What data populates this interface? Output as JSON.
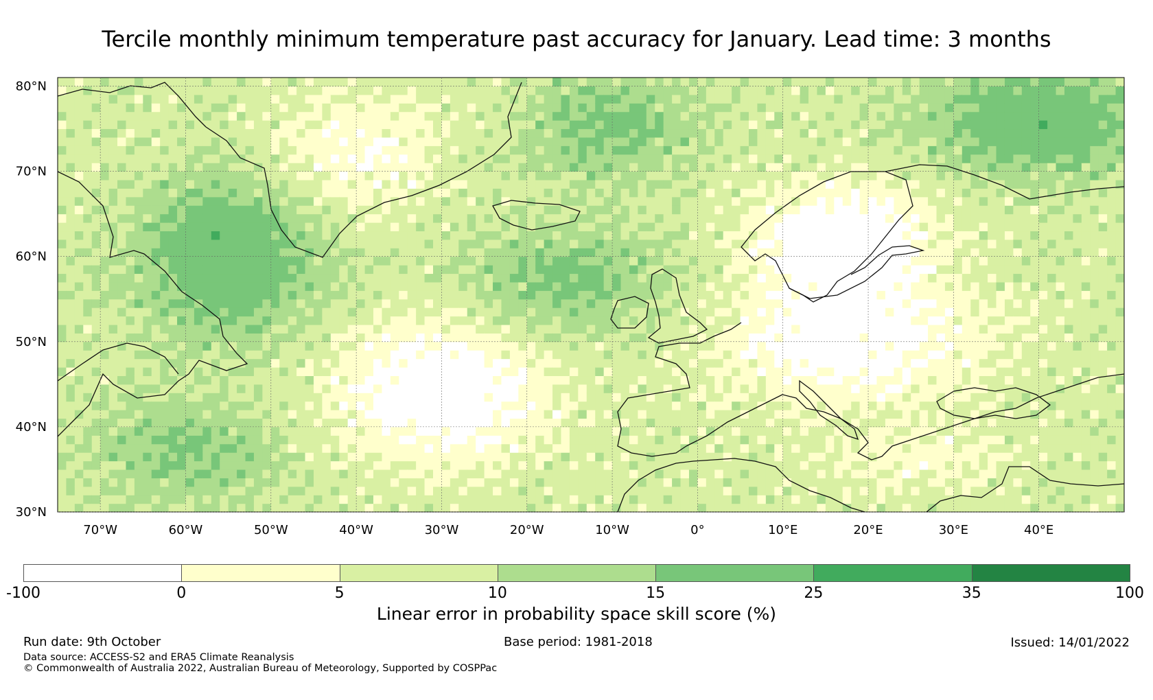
{
  "title": "Tercile monthly minimum temperature past accuracy for January. Lead time: 3 months",
  "map": {
    "lon_range": [
      -75,
      50
    ],
    "lat_range": [
      30,
      81
    ],
    "lat_ticks": [
      {
        "v": 80,
        "label": "80°N"
      },
      {
        "v": 70,
        "label": "70°N"
      },
      {
        "v": 60,
        "label": "60°N"
      },
      {
        "v": 50,
        "label": "50°N"
      },
      {
        "v": 40,
        "label": "40°N"
      },
      {
        "v": 30,
        "label": "30°N"
      }
    ],
    "lon_ticks": [
      {
        "v": -70,
        "label": "70°W"
      },
      {
        "v": -60,
        "label": "60°W"
      },
      {
        "v": -50,
        "label": "50°W"
      },
      {
        "v": -40,
        "label": "40°W"
      },
      {
        "v": -30,
        "label": "30°W"
      },
      {
        "v": -20,
        "label": "20°W"
      },
      {
        "v": -10,
        "label": "10°W"
      },
      {
        "v": 0,
        "label": "0°"
      },
      {
        "v": 10,
        "label": "10°E"
      },
      {
        "v": 20,
        "label": "20°E"
      },
      {
        "v": 30,
        "label": "30°E"
      },
      {
        "v": 40,
        "label": "40°E"
      }
    ]
  },
  "colorbar": {
    "bounds": [
      "-100",
      "0",
      "5",
      "10",
      "15",
      "25",
      "35",
      "100"
    ],
    "colors": [
      "#ffffff",
      "#ffffcc",
      "#d9f0a3",
      "#addd8e",
      "#78c679",
      "#41ab5d",
      "#238443"
    ],
    "label": "Linear error in probability space skill score (%)"
  },
  "footer": {
    "run_date": "Run date: 9th October",
    "base_period": "Base period: 1981-2018",
    "issued": "Issued: 14/01/2022",
    "data_source": "Data source: ACCESS-S2 and ERA5 Climate Reanalysis",
    "copyright": "© Commonwealth of Australia 2022, Australian Bureau of Meteorology, Supported by COSPPac"
  }
}
